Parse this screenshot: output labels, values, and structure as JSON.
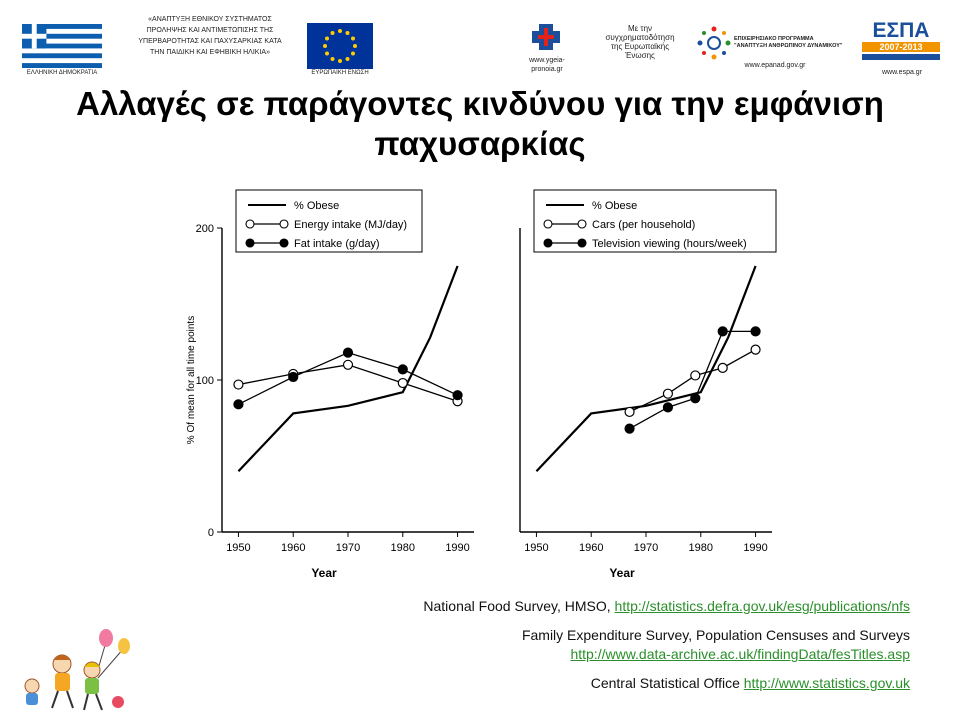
{
  "header": {
    "flag_caption": "ΕΛΛΗΝΙΚΗ ΔΗΜΟΚΡΑΤΙΑ",
    "program_lines": [
      "«ΑΝΑΠΤΥΞΗ ΕΘΝΙΚΟΥ ΣΥΣΤΗΜΑΤΟΣ",
      "ΠΡΟΛΗΨΗΣ ΚΑΙ ΑΝΤΙΜΕΤΩΠΙΣΗΣ ΤΗΣ",
      "ΥΠΕΡΒΑΡΟΤΗΤΑΣ ΚΑΙ ΠΑΧΥΣΑΡΚΙΑΣ ΚΑΤΑ",
      "ΤΗΝ ΠΑΙΔΙΚΗ ΚΑΙ ΕΦΗΒΙΚΗ ΗΛΙΚΙΑ»"
    ],
    "eu_caption": "ΕΥΡΩΠΑΪΚΗ ΕΝΩΣΗ",
    "ministry_url": [
      "www.ygeia-",
      "pronoia.gr"
    ],
    "cofund_lines": [
      "Με την",
      "συγχρηματοδότηση",
      "της Ευρωπαϊκής",
      "Ένωσης"
    ],
    "op_lines": [
      "ΕΠΙΧΕΙΡΗΣΙΑΚΟ ΠΡΟΓΡΑΜΜΑ",
      "\"ΑΝΑΠΤΥΞΗ ΑΝΘΡΩΠΙΝΟΥ ΔΥΝΑΜΙΚΟΥ\""
    ],
    "op_url": "www.epanad.gov.gr",
    "espa_label": "ΕΣΠΑ",
    "espa_years": "2007-2013",
    "espa_url": "www.espa.gr"
  },
  "title_line1": "Αλλαγές σε παράγοντες κινδύνου για την εμφάνιση",
  "title_line2": "παχυσαρκίας",
  "colors": {
    "espa_blue": "#1b4f9c",
    "espa_orange": "#f29400",
    "link_green": "#2a8f2a",
    "eu_blue": "#003399",
    "eu_star": "#ffcc00",
    "greek_blue": "#0d5eaf"
  },
  "chart_data": [
    {
      "type": "line",
      "xlabel": "Year",
      "ylabel": "% Of mean for all time points",
      "ylim": [
        0,
        200
      ],
      "yticks": [
        0,
        100,
        200
      ],
      "xlim": [
        1947,
        1993
      ],
      "xticks": [
        1950,
        1960,
        1970,
        1980,
        1990
      ],
      "legend_placement": "top-left",
      "series": [
        {
          "name": "% Obese",
          "marker": "none",
          "x": [
            1950,
            1960,
            1970,
            1980,
            1985,
            1990
          ],
          "y": [
            40,
            78,
            83,
            92,
            128,
            175
          ]
        },
        {
          "name": "Energy intake (MJ/day)",
          "marker": "open-circle",
          "x": [
            1950,
            1960,
            1970,
            1980,
            1990
          ],
          "y": [
            97,
            104,
            110,
            98,
            86
          ]
        },
        {
          "name": "Fat intake (g/day)",
          "marker": "filled-circle",
          "x": [
            1950,
            1960,
            1970,
            1980,
            1990
          ],
          "y": [
            84,
            102,
            118,
            107,
            90
          ]
        }
      ]
    },
    {
      "type": "line",
      "xlabel": "Year",
      "ylabel": "",
      "ylim": [
        0,
        200
      ],
      "xlim": [
        1947,
        1993
      ],
      "xticks": [
        1950,
        1960,
        1970,
        1980,
        1990
      ],
      "legend_placement": "top-left",
      "series": [
        {
          "name": "% Obese",
          "marker": "none",
          "x": [
            1950,
            1960,
            1970,
            1980,
            1985,
            1990
          ],
          "y": [
            40,
            78,
            83,
            92,
            128,
            175
          ]
        },
        {
          "name": "Cars (per household)",
          "marker": "open-circle",
          "x": [
            1967,
            1974,
            1979,
            1984,
            1990
          ],
          "y": [
            79,
            91,
            103,
            108,
            120
          ]
        },
        {
          "name": "Television viewing (hours/week)",
          "marker": "filled-circle",
          "x": [
            1967,
            1974,
            1979,
            1984,
            1990
          ],
          "y": [
            68,
            82,
            88,
            132,
            132
          ]
        }
      ]
    }
  ],
  "references": [
    {
      "text": "National Food Survey, HMSO, ",
      "link": "http://statistics.defra.gov.uk/esg/publications/nfs"
    },
    {
      "text": "Family Expenditure Survey, Population Censuses and Surveys",
      "link": "http://www.data-archive.ac.uk/findingData/fesTitles.asp"
    },
    {
      "text": "Central Statistical Office ",
      "link": "http://www.statistics.gov.uk"
    }
  ]
}
